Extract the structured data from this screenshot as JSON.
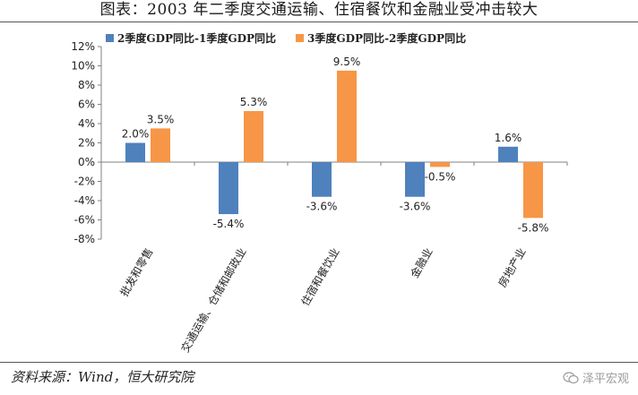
{
  "title": "图表：2003 年二季度交通运输、住宿餐饮和金融业受冲击较大",
  "source": "资料来源：Wind，恒大研究院",
  "watermark": "泽平宏观",
  "colors": {
    "series1": "#4f81bd",
    "series2": "#f79646",
    "axis": "#808080"
  },
  "chart_data": {
    "type": "bar",
    "title": "",
    "xlabel": "",
    "ylabel": "",
    "ylim": [
      -8,
      12
    ],
    "yticks": [
      "-8%",
      "-6%",
      "-4%",
      "-2%",
      "0%",
      "2%",
      "4%",
      "6%",
      "8%",
      "10%",
      "12%"
    ],
    "categories": [
      "批发和零售",
      "交通运输、仓储和邮政业",
      "住宿和餐饮业",
      "金融业",
      "房地产业"
    ],
    "series": [
      {
        "name": "2季度GDP同比-1季度GDP同比",
        "values": [
          2.0,
          -5.4,
          -3.6,
          -3.6,
          1.6
        ],
        "labels": [
          "2.0%",
          "-5.4%",
          "-3.6%",
          "-3.6%",
          "1.6%"
        ]
      },
      {
        "name": "3季度GDP同比-2季度GDP同比",
        "values": [
          3.5,
          5.3,
          9.5,
          -0.5,
          -5.8
        ],
        "labels": [
          "3.5%",
          "5.3%",
          "9.5%",
          "-0.5%",
          "-5.8%"
        ]
      }
    ],
    "grid": false,
    "legend": "top"
  }
}
